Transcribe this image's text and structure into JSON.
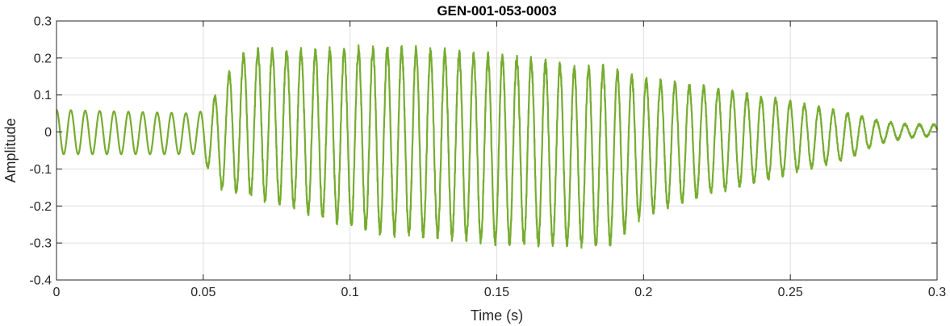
{
  "chart_data": {
    "type": "line",
    "title": "GEN-001-053-0003",
    "xlabel": "Time (s)",
    "ylabel": "Amplitude",
    "xlim": [
      0,
      0.3
    ],
    "ylim": [
      -0.4,
      0.3
    ],
    "xticks": [
      0,
      0.05,
      0.1,
      0.15,
      0.2,
      0.25,
      0.3
    ],
    "xtick_labels": [
      "0",
      "0.05",
      "0.1",
      "0.15",
      "0.2",
      "0.25",
      "0.3"
    ],
    "yticks": [
      -0.4,
      -0.3,
      -0.2,
      -0.1,
      0,
      0.1,
      0.2,
      0.3
    ],
    "ytick_labels": [
      "-0.4",
      "-0.3",
      "-0.2",
      "-0.1",
      "0",
      "0.1",
      "0.2",
      "0.3"
    ],
    "grid": true,
    "series": [
      {
        "color": "#77ac30",
        "oscillation_period_s": 0.0049,
        "envelope": {
          "t": [
            0,
            0.048,
            0.052,
            0.056,
            0.06,
            0.065,
            0.08,
            0.1,
            0.11,
            0.13,
            0.15,
            0.16,
            0.175,
            0.188,
            0.2,
            0.22,
            0.25,
            0.27,
            0.28,
            0.29,
            0.3
          ],
          "upper": [
            0.06,
            0.05,
            0.07,
            0.12,
            0.17,
            0.22,
            0.215,
            0.22,
            0.225,
            0.215,
            0.2,
            0.195,
            0.17,
            0.17,
            0.14,
            0.12,
            0.08,
            0.05,
            0.03,
            0.02,
            0.02
          ],
          "lower": [
            -0.06,
            -0.06,
            -0.1,
            -0.15,
            -0.16,
            -0.17,
            -0.2,
            -0.25,
            -0.27,
            -0.28,
            -0.295,
            -0.3,
            -0.3,
            -0.305,
            -0.22,
            -0.17,
            -0.11,
            -0.07,
            -0.03,
            -0.015,
            -0.01
          ]
        }
      }
    ]
  }
}
